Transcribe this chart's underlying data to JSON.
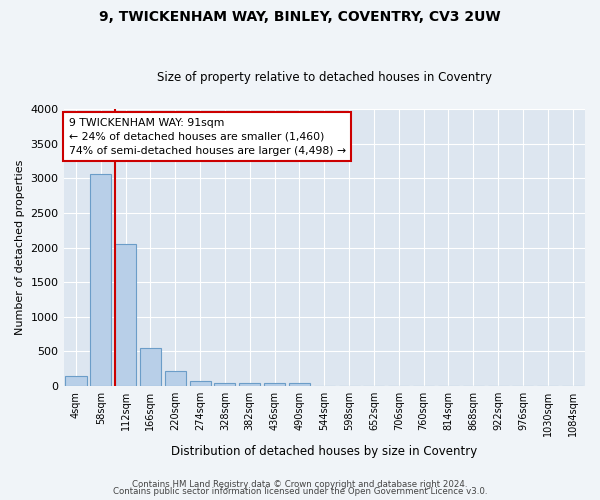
{
  "title": "9, TWICKENHAM WAY, BINLEY, COVENTRY, CV3 2UW",
  "subtitle": "Size of property relative to detached houses in Coventry",
  "xlabel": "Distribution of detached houses by size in Coventry",
  "ylabel": "Number of detached properties",
  "bin_labels": [
    "4sqm",
    "58sqm",
    "112sqm",
    "166sqm",
    "220sqm",
    "274sqm",
    "328sqm",
    "382sqm",
    "436sqm",
    "490sqm",
    "544sqm",
    "598sqm",
    "652sqm",
    "706sqm",
    "760sqm",
    "814sqm",
    "868sqm",
    "922sqm",
    "976sqm",
    "1030sqm",
    "1084sqm"
  ],
  "bar_values": [
    140,
    3070,
    2060,
    555,
    215,
    70,
    50,
    40,
    40,
    40,
    0,
    0,
    0,
    0,
    0,
    0,
    0,
    0,
    0,
    0,
    0
  ],
  "bar_color": "#b8cfe8",
  "bar_edge_color": "#6b9dc8",
  "vline_x_index": 1.57,
  "vline_color": "#cc0000",
  "annotation_text": "9 TWICKENHAM WAY: 91sqm\n← 24% of detached houses are smaller (1,460)\n74% of semi-detached houses are larger (4,498) →",
  "annotation_box_color": "#ffffff",
  "annotation_box_edge": "#cc0000",
  "ylim": [
    0,
    4000
  ],
  "yticks": [
    0,
    500,
    1000,
    1500,
    2000,
    2500,
    3000,
    3500,
    4000
  ],
  "fig_bg_color": "#f0f4f8",
  "plot_bg_color": "#dde6f0",
  "grid_color": "#ffffff",
  "footer_line1": "Contains HM Land Registry data © Crown copyright and database right 2024.",
  "footer_line2": "Contains public sector information licensed under the Open Government Licence v3.0."
}
